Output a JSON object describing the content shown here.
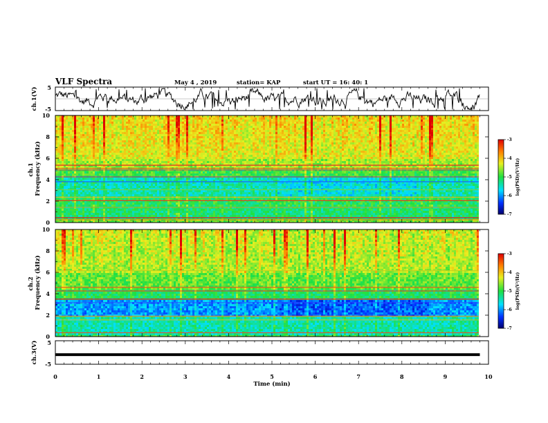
{
  "header": {
    "title": "VLF Spectra",
    "date": "May 4 , 2019",
    "station": "station= KAP",
    "start_time": "start UT = 16: 40: 1"
  },
  "chart_data": [
    {
      "type": "line",
      "panel": "ch1-waveform",
      "ylabel": "ch.1(V)",
      "ylim": [
        -5,
        5
      ],
      "yticks": [
        "5",
        "-5"
      ],
      "xlim": [
        0,
        10
      ],
      "color": "#000000"
    },
    {
      "type": "heatmap",
      "panel": "ch1-spectrogram",
      "ylabel": "ch.1 Frequency (kHz)",
      "ylim": [
        0,
        10
      ],
      "yticks": [
        "0",
        "2",
        "4",
        "6",
        "8",
        "10"
      ],
      "xlim": [
        0,
        10
      ],
      "data_end_min": 9.8,
      "colorbar": {
        "label": "log(PSD)(V²/Hz)",
        "range": [
          -7,
          -3
        ],
        "ticks": [
          "-3",
          "-4",
          "-5",
          "-6",
          "-7"
        ]
      }
    },
    {
      "type": "heatmap",
      "panel": "ch2-spectrogram",
      "ylabel": "ch.2 Frequency (kHz)",
      "ylim": [
        0,
        10
      ],
      "yticks": [
        "0",
        "2",
        "4",
        "6",
        "8",
        "10"
      ],
      "xlim": [
        0,
        10
      ],
      "data_end_min": 9.8,
      "colorbar": {
        "label": "log(PSD)(V²/Hz)",
        "range": [
          -7,
          -3
        ],
        "ticks": [
          "-3",
          "-4",
          "-5",
          "-6",
          "-7"
        ]
      }
    },
    {
      "type": "line",
      "panel": "ch3-waveform",
      "ylabel": "ch.3(V)",
      "ylim": [
        -5,
        5
      ],
      "yticks": [
        "5",
        "-5"
      ],
      "xlim": [
        0,
        10
      ],
      "constant_value": -1.5,
      "color": "#000000"
    }
  ],
  "x_axis": {
    "label": "Time (min)",
    "ticks": [
      "0",
      "1",
      "2",
      "3",
      "4",
      "5",
      "6",
      "7",
      "8",
      "9",
      "10"
    ]
  }
}
